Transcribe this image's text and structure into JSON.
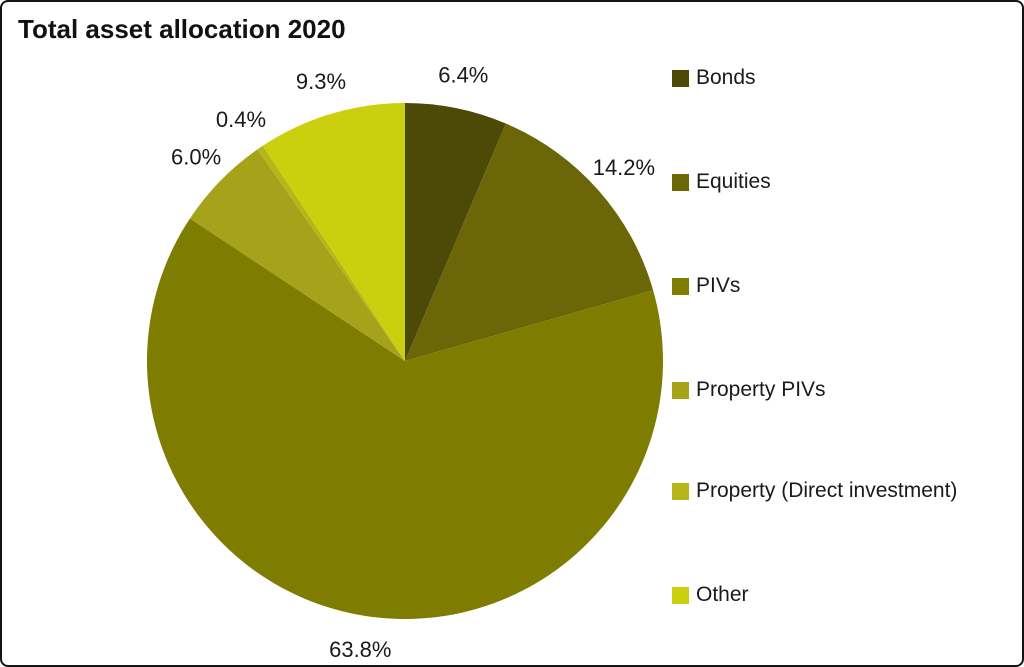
{
  "title": "Total asset allocation 2020",
  "chart_data": {
    "type": "pie",
    "title": "Total asset allocation 2020",
    "categories": [
      "Bonds",
      "Equities",
      "PIVs",
      "Property PIVs",
      "Property (Direct investment)",
      "Other"
    ],
    "values": [
      6.4,
      14.2,
      63.8,
      6.0,
      0.4,
      9.3
    ],
    "value_labels": [
      "6.4%",
      "14.2%",
      "63.8%",
      "6.0%",
      "0.4%",
      "9.3%"
    ],
    "colors": [
      "#4d4a08",
      "#6b6608",
      "#7e7d01",
      "#a6a31a",
      "#b5b618",
      "#cbd00e"
    ],
    "start_angle_deg": 0,
    "direction": "clockwise",
    "legend_position": "right",
    "background": "#ffffff",
    "text_color": "#1a1a1a"
  }
}
